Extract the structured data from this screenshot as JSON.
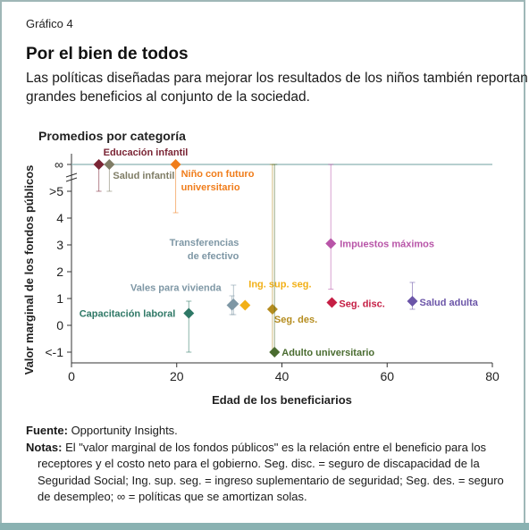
{
  "header": {
    "chart_label": "Gráfico 4",
    "title": "Por el bien de todos",
    "subtitle_line1": "Las políticas diseñadas para mejorar los resultados de los niños también reportan",
    "subtitle_line2": "grandes beneficios al conjunto de la sociedad.",
    "panel_title": "Promedios por categoría"
  },
  "chart_data": {
    "type": "scatter",
    "xlabel": "Edad de los beneficiarios",
    "ylabel": "Valor marginal de los fondos públicos",
    "xlim": [
      0,
      80
    ],
    "x_ticks": [
      0,
      20,
      40,
      60,
      80
    ],
    "y_ticks": [
      {
        "value": -1,
        "label": "<-1"
      },
      {
        "value": 0,
        "label": "0"
      },
      {
        "value": 1,
        "label": "1"
      },
      {
        "value": 2,
        "label": "2"
      },
      {
        "value": 3,
        "label": "3"
      },
      {
        "value": 4,
        "label": "4"
      },
      {
        "value": 5,
        "label": ">5"
      },
      {
        "value": 6,
        "label": "∞"
      }
    ],
    "ylim": [
      -1.4,
      6.4
    ],
    "infinity_value": 6,
    "grid": false,
    "points": [
      {
        "name": "Educación infantil",
        "x": 5.2,
        "y": 6,
        "err_low": 5,
        "err_high": 6,
        "color": "#7a2535",
        "label_lines": [
          "Educación infantil"
        ],
        "label_anchor": "start",
        "label_dx": 5,
        "label_dy": -10
      },
      {
        "name": "Salud infantil",
        "x": 7.2,
        "y": 6,
        "err_low": 5,
        "err_high": 6,
        "color": "#7f7d66",
        "label_lines": [
          "Salud infantil"
        ],
        "label_anchor": "start",
        "label_dx": 4,
        "label_dy": 16
      },
      {
        "name": "Niño con futuro universitario",
        "x": 19.8,
        "y": 6,
        "err_low": 4.2,
        "err_high": 6,
        "color": "#f07d1b",
        "label_lines": [
          "Niño con futuro",
          "universitario"
        ],
        "label_anchor": "start",
        "label_dx": 6,
        "label_dy": 14
      },
      {
        "name": "Transferencias de efectivo",
        "x": 30.8,
        "y": 0.8,
        "err_low": 0.4,
        "err_high": 1.5,
        "color": "#7e97a5",
        "label_lines": [
          "Transferencias",
          "de efectivo"
        ],
        "label_anchor": "end",
        "label_dx": 6,
        "label_dy": -65
      },
      {
        "name": "Vales para vivienda",
        "x": 30.5,
        "y": 0.75,
        "err_low": 0.4,
        "err_high": 1.1,
        "color": "#7e97a5",
        "label_lines": [
          "Vales para vivienda"
        ],
        "label_anchor": "end",
        "label_dx": -12,
        "label_dy": -16
      },
      {
        "name": "Ing. sup. seg.",
        "x": 33.0,
        "y": 0.75,
        "err_low": 0.75,
        "err_high": 0.75,
        "color": "#f2b017",
        "label_lines": [
          "Ing. sup. seg."
        ],
        "label_anchor": "start",
        "label_dx": 4,
        "label_dy": -20
      },
      {
        "name": "Capacitación laboral",
        "x": 22.3,
        "y": 0.45,
        "err_low": -1,
        "err_high": 0.9,
        "color": "#2e7866",
        "label_lines": [
          "Capacitación laboral"
        ],
        "label_anchor": "end",
        "label_dx": -15,
        "label_dy": 4
      },
      {
        "name": "Seg. des.",
        "x": 38.2,
        "y": 0.6,
        "err_low": -1,
        "err_high": 6,
        "color": "#b58c1e",
        "label_lines": [
          "Seg. des."
        ],
        "label_anchor": "start",
        "label_dx": 2,
        "label_dy": 15
      },
      {
        "name": "Adulto universitario",
        "x": 38.6,
        "y": -1,
        "err_low": -1,
        "err_high": 6,
        "color": "#4a6c30",
        "label_lines": [
          "Adulto universitario"
        ],
        "label_anchor": "start",
        "label_dx": 8,
        "label_dy": 4
      },
      {
        "name": "Impuestos máximos",
        "x": 49.3,
        "y": 3.05,
        "err_low": 1.35,
        "err_high": 6,
        "color": "#b855a8",
        "label_lines": [
          "Impuestos máximos"
        ],
        "label_anchor": "start",
        "label_dx": 10,
        "label_dy": 4
      },
      {
        "name": "Seg. disc.",
        "x": 49.5,
        "y": 0.85,
        "err_low": 0.85,
        "err_high": 0.85,
        "color": "#c51e44",
        "label_lines": [
          "Seg. disc."
        ],
        "label_anchor": "start",
        "label_dx": 8,
        "label_dy": 5
      },
      {
        "name": "Salud adulta",
        "x": 64.8,
        "y": 0.9,
        "err_low": 0.6,
        "err_high": 1.6,
        "color": "#6b55a8",
        "label_lines": [
          "Salud adulta"
        ],
        "label_anchor": "start",
        "label_dx": 8,
        "label_dy": 5
      }
    ],
    "infinity_line_color": "#8ab2b2"
  },
  "notes": {
    "source_label": "Fuente:",
    "source_text": " Opportunity Insights.",
    "notes_label": "Notas:",
    "notes_line1": " El \"valor marginal de los fondos públicos\" es la relación entre el beneficio para los",
    "notes_line2": "receptores y el costo neto para el gobierno. Seg. disc. = seguro de discapacidad de la",
    "notes_line3": "Seguridad Social; Ing. sup. seg. = ingreso suplementario de seguridad; Seg. des. = seguro",
    "notes_line4": "de desempleo; ∞ = políticas que se amortizan solas."
  }
}
